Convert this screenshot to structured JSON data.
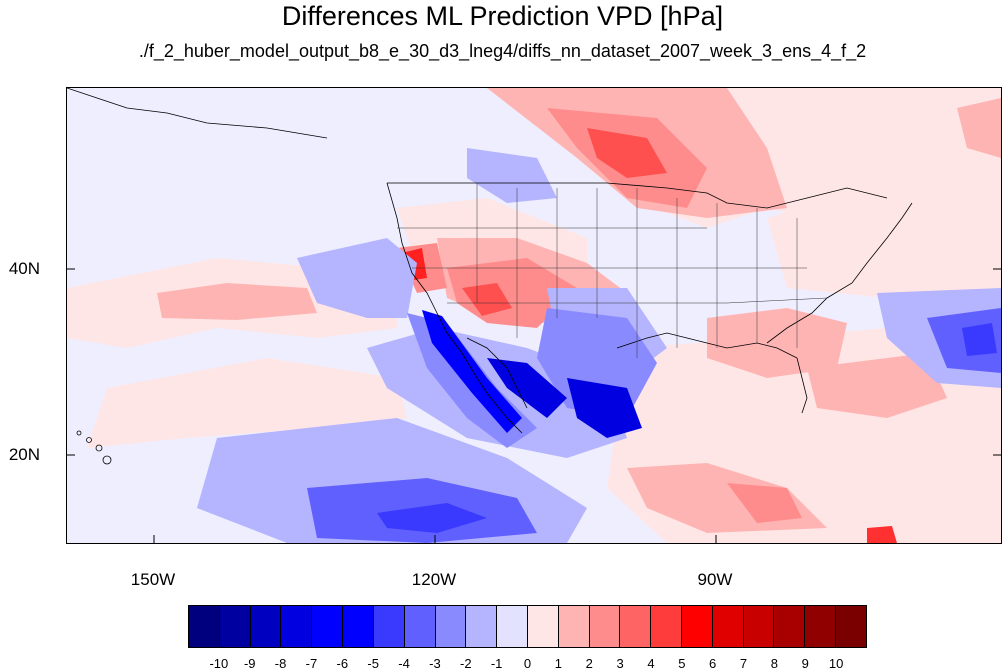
{
  "title": "Differences ML Prediction VPD [hPa]",
  "subtitle": "./f_2_huber_model_output_b8_e_30_d3_lneg4/diffs_nn_dataset_2007_week_3_ens_4_f_2",
  "axes": {
    "lat_labels": [
      {
        "text": "40N",
        "value": 40
      },
      {
        "text": "20N",
        "value": 20
      }
    ],
    "lon_labels": [
      {
        "text": "150W",
        "value": -150
      },
      {
        "text": "120W",
        "value": -120
      },
      {
        "text": "90W",
        "value": -90
      }
    ],
    "lon_range": [
      -159,
      -60
    ],
    "lat_range": [
      11,
      60
    ]
  },
  "colorbar": {
    "labels": [
      "-10",
      "-9",
      "-8",
      "-7",
      "-6",
      "-5",
      "-4",
      "-3",
      "-2",
      "-1",
      "0",
      "1",
      "2",
      "3",
      "4",
      "5",
      "6",
      "7",
      "8",
      "9",
      "10"
    ],
    "colors": [
      "#00007f",
      "#0000a0",
      "#0000c0",
      "#0000e0",
      "#0000ff",
      "#0000ff",
      "#3a3aff",
      "#6060ff",
      "#8a8aff",
      "#b4b4ff",
      "#e2e2ff",
      "#ffe6e6",
      "#ffb4b4",
      "#ff8c8c",
      "#ff6464",
      "#ff3c3c",
      "#ff0000",
      "#e00000",
      "#c80000",
      "#a80000",
      "#900000",
      "#7a0000"
    ]
  },
  "colors": {
    "background_field": "#eeeeff",
    "coastline": "#000000"
  }
}
